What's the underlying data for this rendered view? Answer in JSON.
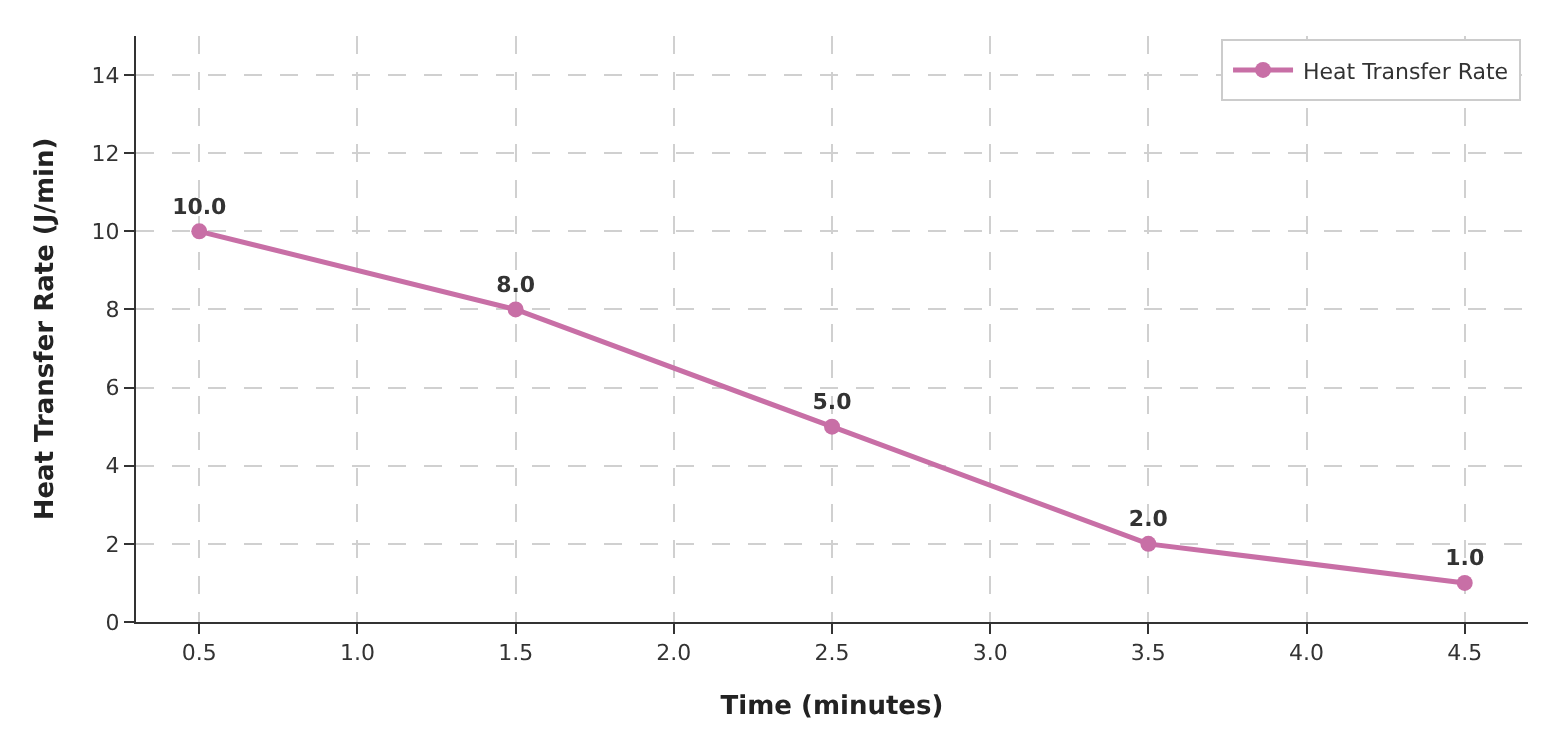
{
  "chart_data": {
    "type": "line",
    "xlabel": "Time (minutes)",
    "ylabel": "Heat Transfer Rate (J/min)",
    "x": [
      0.5,
      1.5,
      2.5,
      3.5,
      4.5
    ],
    "series": [
      {
        "name": "Heat Transfer Rate",
        "color": "#c86fa6",
        "values": [
          10.0,
          8.0,
          5.0,
          2.0,
          1.0
        ]
      }
    ],
    "value_labels": [
      "10.0",
      "8.0",
      "5.0",
      "2.0",
      "1.0"
    ],
    "xlim": [
      0.3,
      4.7
    ],
    "xticks": [
      {
        "value": 0.5,
        "label": "0.5"
      },
      {
        "value": 1.0,
        "label": "1.0"
      },
      {
        "value": 1.5,
        "label": "1.5"
      },
      {
        "value": 2.0,
        "label": "2.0"
      },
      {
        "value": 2.5,
        "label": "2.5"
      },
      {
        "value": 3.0,
        "label": "3.0"
      },
      {
        "value": 3.5,
        "label": "3.5"
      },
      {
        "value": 4.0,
        "label": "4.0"
      },
      {
        "value": 4.5,
        "label": "4.5"
      }
    ],
    "ylim": [
      0,
      15
    ],
    "yticks": [
      0,
      2,
      4,
      6,
      8,
      10,
      12,
      14
    ],
    "grid": true,
    "legend": "top right",
    "marker": "circle",
    "line_style": "solid"
  }
}
